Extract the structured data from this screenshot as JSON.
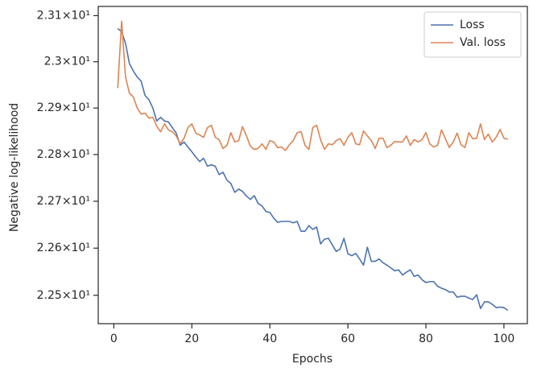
{
  "chart_data": {
    "type": "line",
    "xlabel": "Epochs",
    "ylabel": "Negative log-likelihood",
    "yscale": "log",
    "legend": "upper right",
    "grid": false,
    "x": [
      1,
      2,
      3,
      4,
      5,
      6,
      7,
      8,
      9,
      10,
      11,
      12,
      13,
      14,
      15,
      16,
      17,
      18,
      19,
      20,
      21,
      22,
      23,
      24,
      25,
      26,
      27,
      28,
      29,
      30,
      31,
      32,
      33,
      34,
      35,
      36,
      37,
      38,
      39,
      40,
      41,
      42,
      43,
      44,
      45,
      46,
      47,
      48,
      49,
      50,
      51,
      52,
      53,
      54,
      55,
      56,
      57,
      58,
      59,
      60,
      61,
      62,
      63,
      64,
      65,
      66,
      67,
      68,
      69,
      70,
      71,
      72,
      73,
      74,
      75,
      76,
      77,
      78,
      79,
      80,
      81,
      82,
      83,
      84,
      85,
      86,
      87,
      88,
      89,
      90,
      91,
      92,
      93,
      94,
      95,
      96,
      97,
      98,
      99,
      100,
      101
    ],
    "xlim": [
      -4,
      106
    ],
    "xticks": [
      0,
      20,
      40,
      60,
      80,
      100
    ],
    "ylim": [
      22.44,
      23.12
    ],
    "yticks": [
      {
        "value": 22.5,
        "label": "2.25×10¹"
      },
      {
        "value": 22.6,
        "label": "2.26×10¹"
      },
      {
        "value": 22.7,
        "label": "2.27×10¹"
      },
      {
        "value": 22.8,
        "label": "2.28×10¹"
      },
      {
        "value": 22.9,
        "label": "2.29×10¹"
      },
      {
        "value": 23.0,
        "label": "2.3×10¹"
      },
      {
        "value": 23.1,
        "label": "2.31×10¹"
      }
    ],
    "series": [
      {
        "name": "Loss",
        "color": "#4c72b0",
        "values": [
          23.072,
          23.065,
          23.04,
          22.996,
          22.98,
          22.967,
          22.958,
          22.927,
          22.918,
          22.9,
          22.872,
          22.88,
          22.872,
          22.87,
          22.858,
          22.846,
          22.82,
          22.827,
          22.816,
          22.806,
          22.795,
          22.785,
          22.792,
          22.775,
          22.778,
          22.775,
          22.757,
          22.762,
          22.745,
          22.738,
          22.719,
          22.726,
          22.721,
          22.711,
          22.704,
          22.712,
          22.695,
          22.69,
          22.678,
          22.676,
          22.664,
          22.655,
          22.657,
          22.657,
          22.657,
          22.654,
          22.657,
          22.636,
          22.636,
          22.648,
          22.64,
          22.645,
          22.609,
          22.619,
          22.621,
          22.607,
          22.593,
          22.598,
          22.621,
          22.588,
          22.584,
          22.589,
          22.577,
          22.564,
          22.602,
          22.572,
          22.572,
          22.577,
          22.569,
          22.564,
          22.558,
          22.552,
          22.554,
          22.543,
          22.549,
          22.554,
          22.54,
          22.543,
          22.533,
          22.527,
          22.529,
          22.529,
          22.519,
          22.515,
          22.512,
          22.507,
          22.507,
          22.496,
          22.498,
          22.498,
          22.494,
          22.491,
          22.501,
          22.472,
          22.486,
          22.486,
          22.481,
          22.474,
          22.475,
          22.474,
          22.468
        ]
      },
      {
        "name": "Val. loss",
        "color": "#dd8452",
        "values": [
          22.943,
          23.088,
          22.967,
          22.932,
          22.924,
          22.9,
          22.887,
          22.889,
          22.878,
          22.88,
          22.861,
          22.849,
          22.866,
          22.853,
          22.849,
          22.84,
          22.823,
          22.835,
          22.858,
          22.866,
          22.846,
          22.842,
          22.837,
          22.858,
          22.863,
          22.837,
          22.832,
          22.813,
          22.82,
          22.847,
          22.827,
          22.83,
          22.86,
          22.84,
          22.818,
          22.811,
          22.813,
          22.823,
          22.811,
          22.83,
          22.827,
          22.815,
          22.816,
          22.809,
          22.821,
          22.83,
          22.847,
          22.849,
          22.82,
          22.811,
          22.858,
          22.863,
          22.832,
          22.811,
          22.823,
          22.821,
          22.83,
          22.834,
          22.82,
          22.837,
          22.847,
          22.823,
          22.821,
          22.851,
          22.84,
          22.83,
          22.813,
          22.835,
          22.835,
          22.815,
          22.82,
          22.828,
          22.827,
          22.827,
          22.84,
          22.82,
          22.832,
          22.827,
          22.832,
          22.847,
          22.823,
          22.816,
          22.82,
          22.853,
          22.834,
          22.815,
          22.827,
          22.846,
          22.821,
          22.815,
          22.847,
          22.834,
          22.835,
          22.866,
          22.832,
          22.844,
          22.827,
          22.837,
          22.854,
          22.835,
          22.833
        ]
      }
    ]
  }
}
